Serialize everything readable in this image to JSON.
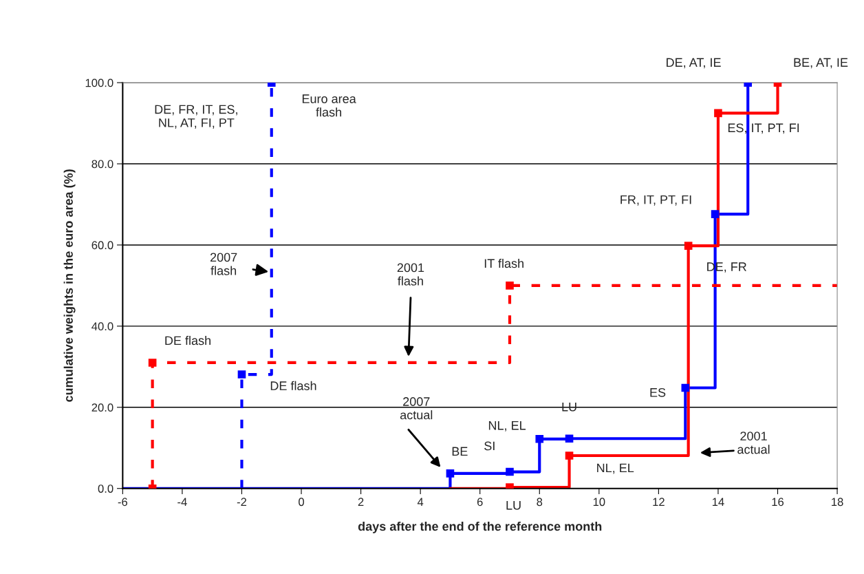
{
  "chart_data": {
    "type": "step",
    "xlabel": "days after the end of the reference month",
    "ylabel": "cumulative weights in the euro area (%)",
    "xlim": [
      -6,
      18
    ],
    "xticks": [
      -6,
      -4,
      -2,
      0,
      2,
      4,
      6,
      8,
      10,
      12,
      14,
      16,
      18
    ],
    "ylim": [
      0,
      100
    ],
    "yticks": [
      {
        "value": 0,
        "label": "0.0"
      },
      {
        "value": 20,
        "label": "20.0"
      },
      {
        "value": 40,
        "label": "40.0"
      },
      {
        "value": 60,
        "label": "60.0"
      },
      {
        "value": 80,
        "label": "80.0"
      },
      {
        "value": 100,
        "label": "100.0"
      }
    ],
    "grid": "y",
    "series": [
      {
        "type": "step",
        "color": "#0000ff",
        "line_style": "solid",
        "x": [
          -6,
          5,
          7,
          8,
          9,
          12.9,
          13.9,
          15
        ],
        "values": [
          0,
          3.7,
          4.1,
          12.2,
          12.3,
          24.8,
          67.6,
          100
        ]
      },
      {
        "type": "step",
        "color": "#ff0000",
        "line_style": "solid",
        "x": [
          5,
          7,
          9,
          13,
          14,
          16
        ],
        "values": [
          0,
          0.3,
          8.1,
          59.8,
          92.5,
          100
        ]
      },
      {
        "type": "step",
        "color": "#ff0000",
        "line_style": "dashed",
        "x": [
          -5,
          -5,
          7,
          18
        ],
        "values": [
          0,
          31,
          50,
          50
        ]
      },
      {
        "type": "step",
        "color": "#0000ff",
        "line_style": "dashed",
        "x": [
          -2,
          -2,
          -1
        ],
        "values": [
          0,
          28.1,
          100
        ]
      },
      {
        "type": "scatter",
        "color": "#ff0000",
        "marker": "square",
        "x": [
          -5,
          -5,
          7,
          7,
          9,
          13,
          14,
          16
        ],
        "values": [
          0,
          31,
          50,
          0.3,
          8.1,
          59.8,
          92.5,
          100
        ]
      },
      {
        "type": "scatter",
        "color": "#0000ff",
        "marker": "square",
        "x": [
          -2,
          -1,
          5,
          7,
          8,
          9,
          12.9,
          13.9,
          15
        ],
        "values": [
          28.1,
          100,
          3.7,
          4.1,
          12.2,
          12.3,
          24.8,
          67.6,
          100
        ]
      }
    ],
    "annotations": [
      {
        "text": "DE, AT, IE",
        "x": 15,
        "y": 100
      },
      {
        "text": "BE, AT, IE",
        "x": 16,
        "y": 100
      },
      "ES, IT, PT, FI",
      {
        "text": "FR, IT, PT, FI",
        "x": 13.9,
        "y": 67.6
      },
      {
        "text": "DE, FR",
        "x": 13,
        "y": 59.8
      },
      {
        "text": "ES",
        "x": 12.9,
        "y": 24.8
      },
      {
        "text": "LU",
        "x": 9,
        "y": 12.3
      },
      {
        "text": "NL, EL",
        "x": 8,
        "y": 12.2
      },
      {
        "text": "SI",
        "x": 7,
        "y": 4.1
      },
      {
        "text": "BE",
        "x": 5,
        "y": 3.7
      },
      {
        "text": "NL, EL",
        "x": 9,
        "y": 8.1
      },
      {
        "text": "LU",
        "x": 7,
        "y": 0.3
      },
      {
        "text": "IT flash",
        "x": 7,
        "y": 50
      },
      {
        "text": "DE flash",
        "x": -5,
        "y": 31
      },
      {
        "text": "DE flash",
        "x": -2,
        "y": 28.1
      },
      {
        "text": "Euro area\nflash",
        "x": -1,
        "y": 100
      },
      "DE, FR, IT, ES,\nNL, AT, FI, PT",
      {
        "text": "2007\nflash",
        "x": -1.1,
        "y": 53.4
      },
      "2001\nflash",
      "2007\nactual",
      "2001\nactual"
    ]
  }
}
